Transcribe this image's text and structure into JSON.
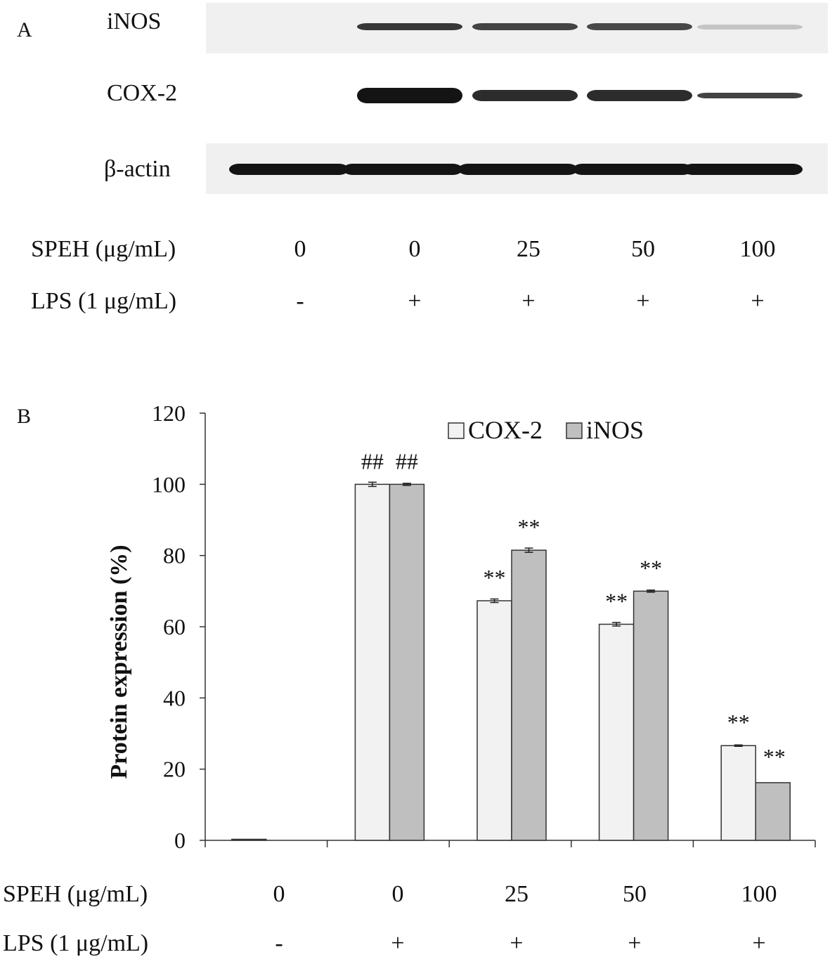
{
  "panel_a": {
    "letter": "A",
    "blots": [
      {
        "label": "iNOS",
        "intensity": [
          0,
          0.85,
          0.8,
          0.78,
          0.25
        ],
        "thickness": [
          0,
          10,
          10,
          10,
          7
        ]
      },
      {
        "label": "COX-2",
        "intensity": [
          0,
          1.0,
          0.9,
          0.9,
          0.8
        ],
        "thickness": [
          0,
          22,
          16,
          16,
          8
        ]
      },
      {
        "label": "β-actin",
        "intensity": [
          1.0,
          1.0,
          1.0,
          1.0,
          1.0
        ],
        "thickness": [
          16,
          16,
          16,
          16,
          16
        ]
      }
    ],
    "rows": [
      {
        "label": "SPEH (μg/mL)",
        "values": [
          "0",
          "0",
          "25",
          "50",
          "100"
        ]
      },
      {
        "label": "LPS (1 μg/mL)",
        "values": [
          "-",
          "+",
          "+",
          "+",
          "+"
        ]
      }
    ]
  },
  "panel_b": {
    "letter": "B",
    "rows": [
      {
        "label": "SPEH (μg/mL)",
        "values": [
          "0",
          "0",
          "25",
          "50",
          "100"
        ]
      },
      {
        "label": "LPS (1 μg/mL)",
        "values": [
          "-",
          "+",
          "+",
          "+",
          "+"
        ]
      }
    ]
  },
  "chart_data": {
    "type": "bar",
    "title": "",
    "xlabel": "",
    "ylabel": "Protein expression (%)",
    "ylim": [
      0,
      120
    ],
    "yticks": [
      0,
      20,
      40,
      60,
      80,
      100,
      120
    ],
    "categories": [
      "0/-",
      "0/+",
      "25/+",
      "50/+",
      "100/+"
    ],
    "series": [
      {
        "name": "COX-2",
        "color": "#f2f2f2",
        "values": [
          0.3,
          100,
          67.3,
          60.7,
          26.6
        ],
        "errors": [
          0,
          0.6,
          0.5,
          0.5,
          0.2
        ],
        "annotations": [
          "",
          "##",
          "**",
          "**",
          "**"
        ]
      },
      {
        "name": "iNOS",
        "color": "#bfbfbf",
        "values": [
          0,
          100,
          81.5,
          70,
          16.2
        ],
        "errors": [
          0,
          0.3,
          0.6,
          0.3,
          0
        ],
        "annotations": [
          "",
          "##",
          "**",
          "**",
          "**"
        ]
      }
    ],
    "legend": "top-right",
    "grid": false
  }
}
